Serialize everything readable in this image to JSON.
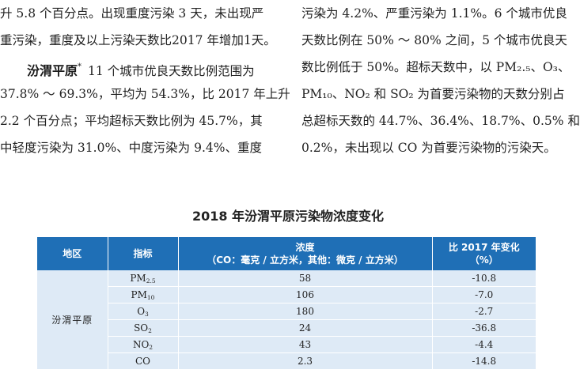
{
  "left_column": {
    "line1": "升 5.8 个百分点。出现重度污染 3 天，未出现严",
    "line2": "重污染，重度及以上污染天数比2017 年增加1天。",
    "region_heading": "汾渭平原",
    "heading_mark": "*",
    "line3_rest": "11 个城市优良天数比例范围为",
    "line4": "37.8% ～ 69.3%，平均为 54.3%，比 2017 年上升",
    "line5": "2.2 个百分点；平均超标天数比例为 45.7%，其",
    "line6": "中轻度污染为 31.0%、中度污染为 9.4%、重度"
  },
  "right_column": {
    "line1": "污染为 4.2%、严重污染为 1.1%。6 个城市优良",
    "line2": "天数比例在 50% ～ 80% 之间，5 个城市优良天",
    "line3": "数比例低于 50%。超标天数中，以 PM₂.₅、O₃、",
    "line4": "PM₁₀、NO₂ 和 SO₂ 为首要污染物的天数分别占",
    "line5": "总超标天数的 44.7%、36.4%、18.7%、0.5% 和",
    "line6": "0.2%，未出现以 CO 为首要污染物的污染天。"
  },
  "table": {
    "title": "2018 年汾渭平原污染物浓度变化",
    "headers": {
      "region": "地区",
      "indicator": "指标",
      "concentration_line1": "浓度",
      "concentration_line2": "（CO：毫克 / 立方米，其他：微克 / 立方米）",
      "change_line1": "比 2017 年变化",
      "change_line2": "（%）"
    },
    "region": "汾渭平原",
    "rows": [
      {
        "indicator_base": "PM",
        "indicator_sub": "2.5",
        "concentration": "58",
        "change": "-10.8"
      },
      {
        "indicator_base": "PM",
        "indicator_sub": "10",
        "concentration": "106",
        "change": "-7.0"
      },
      {
        "indicator_base": "O",
        "indicator_sub": "3",
        "concentration": "180",
        "change": "-2.7"
      },
      {
        "indicator_base": "SO",
        "indicator_sub": "2",
        "concentration": "24",
        "change": "-36.8"
      },
      {
        "indicator_base": "NO",
        "indicator_sub": "2",
        "concentration": "43",
        "change": "-4.4"
      },
      {
        "indicator_base": "CO",
        "indicator_sub": "",
        "concentration": "2.3",
        "change": "-14.8"
      }
    ]
  }
}
